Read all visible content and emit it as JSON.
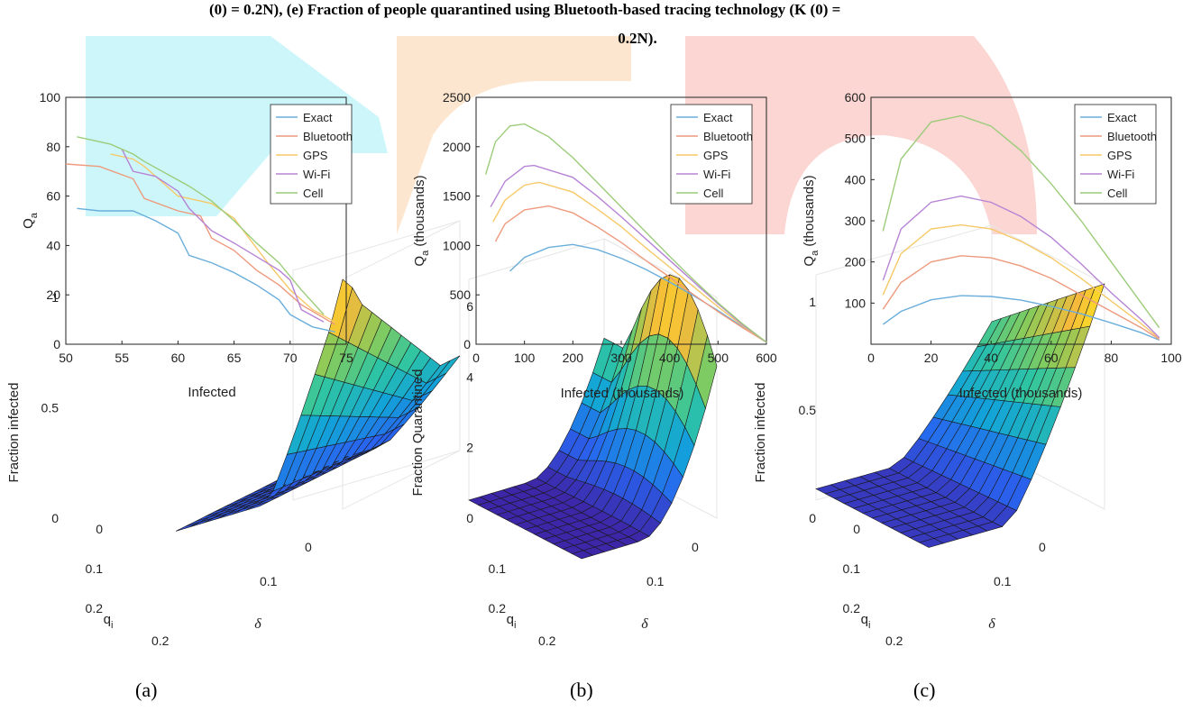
{
  "caption": {
    "line1": "(0) = 0.2N), (e) Fraction of people quarantined using Bluetooth-based tracing technology (K (0) =",
    "line2": "0.2N)."
  },
  "watermark_colors": [
    "#cdf6fb",
    "#fde6cf",
    "#fbd6d2"
  ],
  "series_colors": {
    "Exact": "#6aaedb",
    "Bluetooth": "#ee9a7e",
    "GPS": "#f6c968",
    "Wi-Fi": "#b784d6",
    "Cell": "#9ccc7a"
  },
  "panel_labels": [
    "(a)",
    "(b)",
    "(c)"
  ],
  "chart_data": [
    {
      "id": "a-line",
      "type": "line",
      "xlabel": "Infected",
      "ylabel": "Q",
      "ylabel_sub": "a",
      "xlim": [
        50,
        75
      ],
      "ylim": [
        0,
        100
      ],
      "xticks": [
        50,
        55,
        60,
        65,
        70,
        75
      ],
      "yticks": [
        0,
        20,
        40,
        60,
        80,
        100
      ],
      "legend": [
        "Exact",
        "Bluetooth",
        "GPS",
        "Wi-Fi",
        "Cell"
      ],
      "legend_position": "top-right",
      "series": [
        {
          "name": "Exact",
          "x": [
            51,
            53,
            56,
            58,
            60,
            61,
            63,
            65,
            67,
            69,
            70,
            72,
            74
          ],
          "y": [
            55,
            54,
            54,
            50,
            45,
            36,
            33,
            29,
            24,
            18,
            12,
            7,
            5
          ]
        },
        {
          "name": "Bluetooth",
          "x": [
            50,
            53,
            56,
            57,
            60,
            62,
            63,
            65,
            67,
            69,
            71,
            74
          ],
          "y": [
            73,
            72,
            67,
            59,
            54,
            52,
            43,
            38,
            30,
            24,
            16,
            8
          ]
        },
        {
          "name": "GPS",
          "x": [
            54,
            56,
            57,
            60,
            63,
            65,
            66,
            68,
            70,
            72,
            74
          ],
          "y": [
            77,
            75,
            72,
            60,
            57,
            51,
            45,
            33,
            22,
            14,
            9
          ]
        },
        {
          "name": "Wi-Fi",
          "x": [
            55,
            56,
            58,
            60,
            61,
            63,
            65,
            69,
            70,
            71,
            73
          ],
          "y": [
            79,
            70,
            68,
            62,
            55,
            46,
            41,
            30,
            26,
            14,
            9
          ]
        },
        {
          "name": "Cell",
          "x": [
            51,
            54,
            56,
            57,
            61,
            63,
            65,
            67,
            69,
            71,
            73
          ],
          "y": [
            84,
            81,
            77,
            74,
            64,
            58,
            50,
            41,
            33,
            22,
            12
          ]
        }
      ]
    },
    {
      "id": "b-line",
      "type": "line",
      "xlabel": "Infected (thousands)",
      "ylabel": "Q",
      "ylabel_sub": "a",
      "ylabel_suffix": " (thousands)",
      "xlim": [
        0,
        600
      ],
      "ylim": [
        0,
        2500
      ],
      "xticks": [
        0,
        100,
        200,
        300,
        400,
        500,
        600
      ],
      "yticks": [
        0,
        500,
        1000,
        1500,
        2000,
        2500
      ],
      "legend": [
        "Exact",
        "Bluetooth",
        "GPS",
        "Wi-Fi",
        "Cell"
      ],
      "legend_position": "top-right",
      "series": [
        {
          "name": "Exact",
          "x": [
            70,
            100,
            150,
            200,
            250,
            300,
            350,
            400,
            450,
            500,
            550,
            600
          ],
          "y": [
            740,
            880,
            980,
            1010,
            960,
            870,
            760,
            630,
            490,
            340,
            180,
            20
          ]
        },
        {
          "name": "Bluetooth",
          "x": [
            40,
            60,
            100,
            150,
            200,
            250,
            300,
            350,
            400,
            450,
            500,
            550,
            600
          ],
          "y": [
            1040,
            1220,
            1360,
            1400,
            1330,
            1190,
            1030,
            850,
            680,
            500,
            330,
            170,
            20
          ]
        },
        {
          "name": "GPS",
          "x": [
            35,
            60,
            100,
            130,
            200,
            250,
            300,
            350,
            400,
            450,
            500,
            550,
            600
          ],
          "y": [
            1240,
            1460,
            1610,
            1640,
            1540,
            1370,
            1190,
            980,
            780,
            580,
            380,
            190,
            20
          ]
        },
        {
          "name": "Wi-Fi",
          "x": [
            30,
            60,
            100,
            120,
            200,
            250,
            300,
            350,
            400,
            450,
            500,
            550,
            600
          ],
          "y": [
            1390,
            1650,
            1800,
            1810,
            1690,
            1500,
            1290,
            1070,
            850,
            630,
            410,
            200,
            20
          ]
        },
        {
          "name": "Cell",
          "x": [
            20,
            40,
            70,
            100,
            150,
            200,
            250,
            300,
            350,
            400,
            450,
            500,
            550,
            600
          ],
          "y": [
            1720,
            2050,
            2210,
            2230,
            2100,
            1890,
            1640,
            1390,
            1140,
            890,
            650,
            420,
            210,
            20
          ]
        }
      ]
    },
    {
      "id": "c-line",
      "type": "line",
      "xlabel": "Infected (thousands)",
      "ylabel": "Q",
      "ylabel_sub": "a",
      "ylabel_suffix": " (thousands)",
      "xlim": [
        0,
        100
      ],
      "ylim": [
        0,
        600
      ],
      "xticks": [
        0,
        20,
        40,
        60,
        80,
        100
      ],
      "yticks": [
        100,
        200,
        300,
        400,
        500,
        600
      ],
      "legend": [
        "Exact",
        "Bluetooth",
        "GPS",
        "Wi-Fi",
        "Cell"
      ],
      "legend_position": "top-right",
      "series": [
        {
          "name": "Exact",
          "x": [
            4,
            10,
            20,
            30,
            40,
            50,
            60,
            70,
            80,
            90,
            96
          ],
          "y": [
            48,
            80,
            108,
            118,
            116,
            107,
            92,
            74,
            52,
            28,
            10
          ]
        },
        {
          "name": "Bluetooth",
          "x": [
            4,
            10,
            20,
            30,
            40,
            50,
            60,
            70,
            80,
            90,
            96
          ],
          "y": [
            85,
            150,
            200,
            215,
            210,
            190,
            160,
            120,
            80,
            40,
            12
          ]
        },
        {
          "name": "GPS",
          "x": [
            4,
            10,
            20,
            30,
            40,
            50,
            60,
            70,
            80,
            90,
            96
          ],
          "y": [
            120,
            220,
            280,
            290,
            280,
            250,
            210,
            160,
            105,
            50,
            14
          ]
        },
        {
          "name": "Wi-Fi",
          "x": [
            4,
            10,
            20,
            30,
            40,
            50,
            60,
            70,
            80,
            90,
            96
          ],
          "y": [
            155,
            280,
            345,
            360,
            345,
            310,
            260,
            195,
            125,
            60,
            16
          ]
        },
        {
          "name": "Cell",
          "x": [
            4,
            10,
            20,
            30,
            40,
            50,
            60,
            70,
            80,
            90,
            96
          ],
          "y": [
            275,
            450,
            540,
            555,
            530,
            470,
            390,
            300,
            200,
            100,
            40
          ]
        }
      ]
    },
    {
      "id": "a-surface",
      "type": "surface",
      "zlabel": "Fraction infected",
      "xlabel": "q",
      "xlabel_sub": "i",
      "ylabel": "δ",
      "xticks": [
        "0",
        "0.1",
        "0.2"
      ],
      "yticks": [
        "0",
        "0.1",
        "0.2"
      ],
      "zticks": [
        "0",
        "0.5",
        "1"
      ],
      "peak": 1.0,
      "shape": "ridge"
    },
    {
      "id": "b-surface",
      "type": "surface",
      "zlabel": "Fraction Quarantined",
      "xlabel": "q",
      "xlabel_sub": "i",
      "ylabel": "δ",
      "xticks": [
        "0.1",
        "0.2"
      ],
      "yticks": [
        "0",
        "0.1",
        "0.2"
      ],
      "zticks": [
        "0",
        "2",
        "4",
        "6"
      ],
      "peak": 6,
      "shape": "hump"
    },
    {
      "id": "c-surface",
      "type": "surface",
      "zlabel": "Fraction infected",
      "xlabel": "q",
      "xlabel_sub": "i",
      "ylabel": "δ",
      "xticks": [
        "0",
        "0.1",
        "0.2"
      ],
      "yticks": [
        "0",
        "0.1",
        "0.2"
      ],
      "zticks": [
        "0",
        "0.5",
        "1"
      ],
      "peak": 1.0,
      "shape": "slope"
    }
  ]
}
